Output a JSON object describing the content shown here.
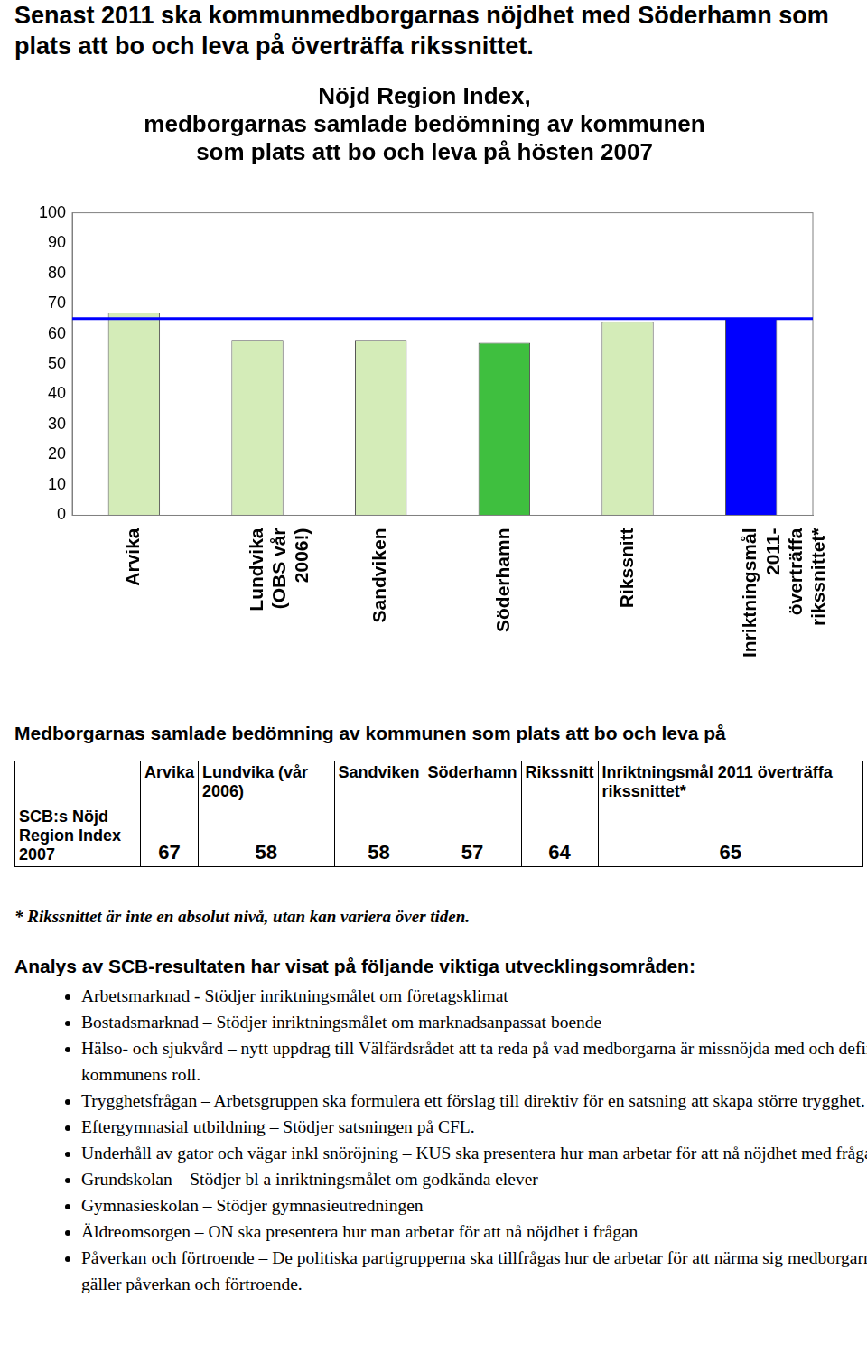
{
  "heading": "Senast 2011 ska kommunmedborgarnas nöjdhet med Söderhamn som plats att bo och leva på överträffa rikssnittet.",
  "chart_data": {
    "type": "bar",
    "title": [
      "Nöjd Region Index,",
      "medborgarnas samlade bedömning av kommunen",
      "som plats att bo och leva på hösten 2007"
    ],
    "categories": [
      [
        "Arvika"
      ],
      [
        "Lundvika",
        "(OBS vår",
        "2006!)"
      ],
      [
        "Sandviken"
      ],
      [
        "Söderhamn"
      ],
      [
        "Rikssnitt"
      ],
      [
        "Inriktningsmål",
        "2011-",
        "överträffa",
        "rikssnittet*"
      ]
    ],
    "values": [
      67,
      58,
      58,
      57,
      64,
      65
    ],
    "colors": [
      "#d4ecb8",
      "#d4ecb8",
      "#d4ecb8",
      "#3fbf3f",
      "#d4ecb8",
      "#0000ff"
    ],
    "reference_line": {
      "value": 65,
      "color": "#0000ff"
    },
    "ylim": [
      0,
      100
    ],
    "yticks": [
      0,
      10,
      20,
      30,
      40,
      50,
      60,
      70,
      80,
      90,
      100
    ],
    "grid": false
  },
  "table": {
    "title": "Medborgarnas samlade bedömning av kommunen som plats att bo och leva på",
    "header": [
      "",
      "Arvika",
      "Lundvika (vår 2006)",
      "Sandviken",
      "Söderhamn",
      "Rikssnitt",
      "Inriktningsmål 2011 överträffa rikssnittet*"
    ],
    "rows": [
      [
        "SCB:s Nöjd Region Index 2007",
        67,
        58,
        58,
        57,
        64,
        65
      ]
    ],
    "note": "* Rikssnittet är inte en absolut nivå, utan kan variera över tiden."
  },
  "analysis": {
    "title": "Analys av SCB-resultaten har visat på följande viktiga utvecklingsområden:",
    "items": [
      "Arbetsmarknad - Stödjer inriktningsmålet om företagsklimat",
      "Bostadsmarknad – Stödjer inriktningsmålet om marknadsanpassat boende",
      "Hälso- och sjukvård – nytt uppdrag till Välfärdsrådet att ta reda på vad medborgarna är missnöjda med och definiera kommunens roll.",
      "Trygghetsfrågan – Arbetsgruppen ska formulera ett förslag till direktiv för en satsning att skapa större trygghet.",
      "Eftergymnasial utbildning – Stödjer satsningen på CFL.",
      "Underhåll av gator och vägar inkl snöröjning – KUS ska presentera hur man arbetar för att nå nöjdhet med frågan.",
      "Grundskolan – Stödjer bl a inriktningsmålet om godkända elever",
      "Gymnasieskolan – Stödjer gymnasieutredningen",
      "Äldreomsorgen – ON ska presentera hur man arbetar för att nå nöjdhet i frågan",
      "Påverkan och förtroende – De politiska partigrupperna ska tillfrågas hur de arbetar för att närma sig medborgarna vad gäller påverkan och förtroende."
    ]
  }
}
